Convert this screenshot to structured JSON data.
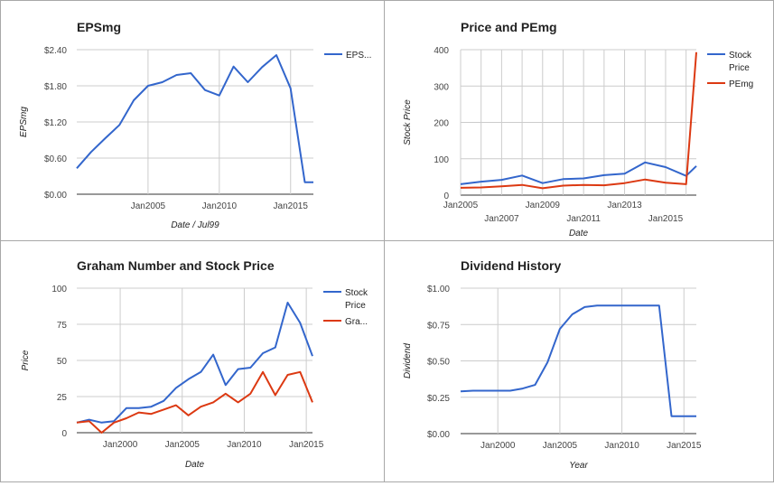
{
  "colors": {
    "blue": "#3366cc",
    "red": "#dc3912"
  },
  "chart_data": [
    {
      "type": "line",
      "title": "EPSmg",
      "xlabel": "Date / Jul99",
      "ylabel": "EPSmg",
      "y_ticks": [
        "$0.00",
        "$0.60",
        "$1.20",
        "$1.80",
        "$2.40"
      ],
      "x_ticks": [
        "Jan2005",
        "Jan2010",
        "Jan2015"
      ],
      "ylim": [
        0,
        2.4
      ],
      "legend": "right",
      "grid": true,
      "series": [
        {
          "name": "EPS...",
          "color": "blue",
          "x": [
            2000.0,
            2001.0,
            2002.0,
            2003.0,
            2004.0,
            2005.0,
            2006.0,
            2007.0,
            2008.0,
            2009.0,
            2010.0,
            2011.0,
            2012.0,
            2013.0,
            2014.0,
            2015.0,
            2016.0,
            2016.6
          ],
          "y": [
            0.43,
            0.7,
            0.93,
            1.15,
            1.56,
            1.8,
            1.86,
            1.98,
            2.01,
            1.73,
            1.64,
            2.12,
            1.86,
            2.11,
            2.31,
            1.76,
            0.2,
            0.2
          ]
        }
      ]
    },
    {
      "type": "line",
      "title": "Price and PEmg",
      "xlabel": "Date",
      "ylabel": "Stock Price",
      "y_ticks": [
        "0",
        "100",
        "200",
        "300",
        "400"
      ],
      "x_ticks": [
        "Jan2005",
        "Jan2007",
        "Jan2009",
        "Jan2011",
        "Jan2013",
        "Jan2015"
      ],
      "ylim": [
        0,
        400
      ],
      "legend": "right",
      "grid": true,
      "series": [
        {
          "name": "Stock Price",
          "color": "blue",
          "x": [
            2005.0,
            2006.0,
            2007.0,
            2008.0,
            2009.0,
            2010.0,
            2011.0,
            2012.0,
            2013.0,
            2014.0,
            2015.0,
            2016.0,
            2016.5
          ],
          "y": [
            30,
            37,
            42,
            54,
            33,
            44,
            46,
            55,
            59,
            90,
            77,
            53,
            80
          ]
        },
        {
          "name": "PEmg",
          "color": "red",
          "x": [
            2005.0,
            2006.0,
            2007.0,
            2008.0,
            2009.0,
            2010.0,
            2011.0,
            2012.0,
            2013.0,
            2014.0,
            2015.0,
            2016.0,
            2016.5
          ],
          "y": [
            20,
            21,
            24,
            28,
            19,
            26,
            28,
            27,
            33,
            43,
            34,
            30,
            393
          ]
        }
      ]
    },
    {
      "type": "line",
      "title": "Graham Number and Stock Price",
      "xlabel": "Date",
      "ylabel": "Price",
      "y_ticks": [
        "0",
        "25",
        "50",
        "75",
        "100"
      ],
      "x_ticks": [
        "Jan2000",
        "Jan2005",
        "Jan2010",
        "Jan2015"
      ],
      "ylim": [
        0,
        100
      ],
      "legend": "right",
      "grid": true,
      "series": [
        {
          "name": "Stock Price",
          "color": "blue",
          "x": [
            1996.5,
            1997.5,
            1998.5,
            1999.5,
            2000.5,
            2001.5,
            2002.5,
            2003.5,
            2004.5,
            2005.5,
            2006.5,
            2007.5,
            2008.5,
            2009.5,
            2010.5,
            2011.5,
            2012.5,
            2013.5,
            2014.5,
            2015.5
          ],
          "y": [
            7,
            9,
            7,
            8,
            17,
            17,
            18,
            22,
            31,
            37,
            42,
            54,
            33,
            44,
            45,
            55,
            59,
            90,
            76,
            53
          ]
        },
        {
          "name": "Gra...",
          "color": "red",
          "x": [
            1996.5,
            1997.5,
            1998.5,
            1999.5,
            2000.5,
            2001.5,
            2002.5,
            2003.5,
            2004.5,
            2005.5,
            2006.5,
            2007.5,
            2008.5,
            2009.5,
            2010.5,
            2011.5,
            2012.5,
            2013.5,
            2014.5,
            2015.5
          ],
          "y": [
            7,
            8,
            0,
            7,
            10,
            14,
            13,
            16,
            19,
            12,
            18,
            21,
            27,
            21,
            27,
            42,
            26,
            40,
            42,
            21
          ]
        }
      ]
    },
    {
      "type": "line",
      "title": "Dividend History",
      "xlabel": "Year",
      "ylabel": "Dividend",
      "y_ticks": [
        "$0.00",
        "$0.25",
        "$0.50",
        "$0.75",
        "$1.00"
      ],
      "x_ticks": [
        "Jan2000",
        "Jan2005",
        "Jan2010",
        "Jan2015"
      ],
      "ylim": [
        0,
        1
      ],
      "legend": "none",
      "grid": true,
      "series": [
        {
          "name": "",
          "color": "blue",
          "x": [
            1997.0,
            1998.0,
            1999.0,
            2000.0,
            2001.0,
            2002.0,
            2003.0,
            2004.0,
            2005.0,
            2006.0,
            2007.0,
            2008.0,
            2009.0,
            2010.0,
            2011.0,
            2012.0,
            2013.0,
            2014.0,
            2015.0,
            2016.0
          ],
          "y": [
            0.29,
            0.295,
            0.295,
            0.295,
            0.295,
            0.31,
            0.335,
            0.49,
            0.72,
            0.82,
            0.87,
            0.88,
            0.88,
            0.88,
            0.88,
            0.88,
            0.88,
            0.12,
            0.12,
            0.12
          ]
        }
      ]
    }
  ]
}
